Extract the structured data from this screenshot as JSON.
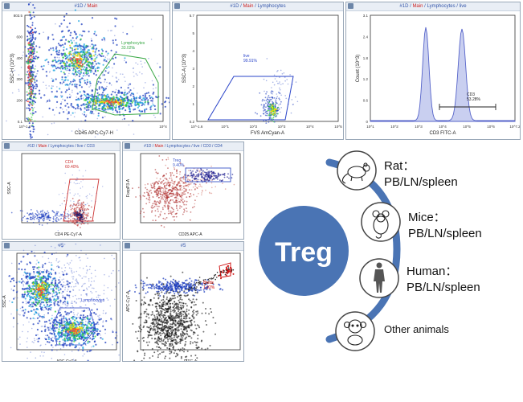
{
  "plots": {
    "p1": {
      "title": {
        "id": "#1D",
        "sep": " / ",
        "main": "Main"
      },
      "xlabel": "CD45 APC-Cy7-H",
      "ylabel": "SSC-H (10^3)",
      "x_ticks": [
        "10^-1.6",
        "10^4"
      ],
      "y_ticks": [
        "803.5",
        "600",
        "400",
        "300",
        "200",
        "0.1"
      ],
      "gate_label": "Lymphocytes",
      "gate_value": "33.02%"
    },
    "p2": {
      "title": {
        "id": "#1D",
        "sep": " / ",
        "main": "Main",
        "path": " / Lymphocytes"
      },
      "xlabel": "FVS AmCyan-A",
      "ylabel": "SSC-A (10^3)",
      "x_ticks": [
        "10^-1.6",
        "10^1",
        "10^2",
        "10^3",
        "10^4",
        "10^5"
      ],
      "y_ticks": [
        "5.7",
        "5",
        "4",
        "3",
        "2",
        "1",
        "0.2"
      ],
      "gate_label": "live",
      "gate_value": "99.91%"
    },
    "p3": {
      "title": {
        "id": "#1D",
        "sep": " / ",
        "main": "Main",
        "path": " / Lymphocytes / live"
      },
      "xlabel": "CD3 FITC-A",
      "ylabel": "Count (10^3)",
      "x_ticks": [
        "10^1",
        "10^2",
        "10^3",
        "10^4",
        "10^5",
        "10^6",
        "10^7.2"
      ],
      "y_ticks": [
        "3.1",
        "2.4",
        "1.8",
        "1.2",
        "0.6",
        "0"
      ],
      "gate_label": "CD3",
      "gate_value": "53.28%"
    },
    "p4": {
      "title": {
        "id": "#1D",
        "sep": " / ",
        "main": "Main",
        "path": " / Lymphocytes / live / CD3"
      },
      "xlabel": "CD4 PE-Cy7-A",
      "ylabel": "SSC-A",
      "gate_label": "CD4",
      "gate_value": "60.40%"
    },
    "p5": {
      "title": {
        "id": "#1D",
        "sep": " / ",
        "main": "Main",
        "path": " / Lymphocytes / live / CD3 / CD4"
      },
      "xlabel": "CD25 APC-A",
      "ylabel": "FoxpP3-A",
      "gate_label": "Treg",
      "gate_value": "9.40%"
    },
    "p6": {
      "title": {
        "id": "#5",
        "sep": "",
        "main": ""
      },
      "xlabel": "APC-Cy7-A",
      "ylabel": "SSC-A",
      "gate_label": "Lymphocytes",
      "gate_value": ""
    },
    "p7": {
      "title": {
        "id": "#5",
        "sep": "",
        "main": ""
      },
      "xlabel": "FITC-A",
      "ylabel": "APC-Cy7-A",
      "gate_label": "Breds",
      "gate_value": "1.92%"
    }
  },
  "diagram": {
    "center_label": "Treg",
    "items": [
      {
        "name": "Rat：",
        "sample": "PB/LN/spleen",
        "icon": "rat-icon"
      },
      {
        "name": "Mice：",
        "sample": "PB/LN/spleen",
        "icon": "mouse-icon"
      },
      {
        "name": "Human：",
        "sample": "PB/LN/spleen",
        "icon": "human-icon"
      },
      {
        "name": "Other animals",
        "sample": "",
        "icon": "monkey-icon"
      }
    ],
    "colors": {
      "circle": "#4a74b4",
      "arc": "#4a74b4",
      "text": "#111111"
    }
  }
}
